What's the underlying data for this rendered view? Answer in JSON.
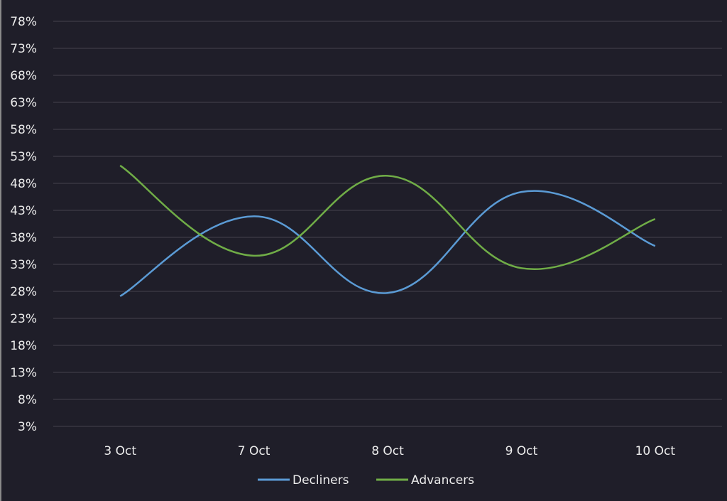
{
  "chart_data": {
    "type": "line",
    "title": "",
    "xlabel": "",
    "ylabel": "",
    "categories": [
      "3 Oct",
      "7 Oct",
      "8 Oct",
      "9 Oct",
      "10 Oct"
    ],
    "yticks": [
      "3%",
      "8%",
      "13%",
      "18%",
      "23%",
      "28%",
      "33%",
      "38%",
      "43%",
      "48%",
      "53%",
      "58%",
      "63%",
      "68%",
      "73%",
      "78%"
    ],
    "ylim": [
      3,
      78
    ],
    "grid": true,
    "legend": "bottom",
    "series": [
      {
        "name": "Decliners",
        "color": "#5b9bd5",
        "values": [
          27.1,
          41.9,
          27.7,
          46.4,
          36.4
        ]
      },
      {
        "name": "Advancers",
        "color": "#70ad47",
        "values": [
          51.3,
          34.6,
          49.4,
          32.3,
          41.4
        ]
      }
    ]
  }
}
